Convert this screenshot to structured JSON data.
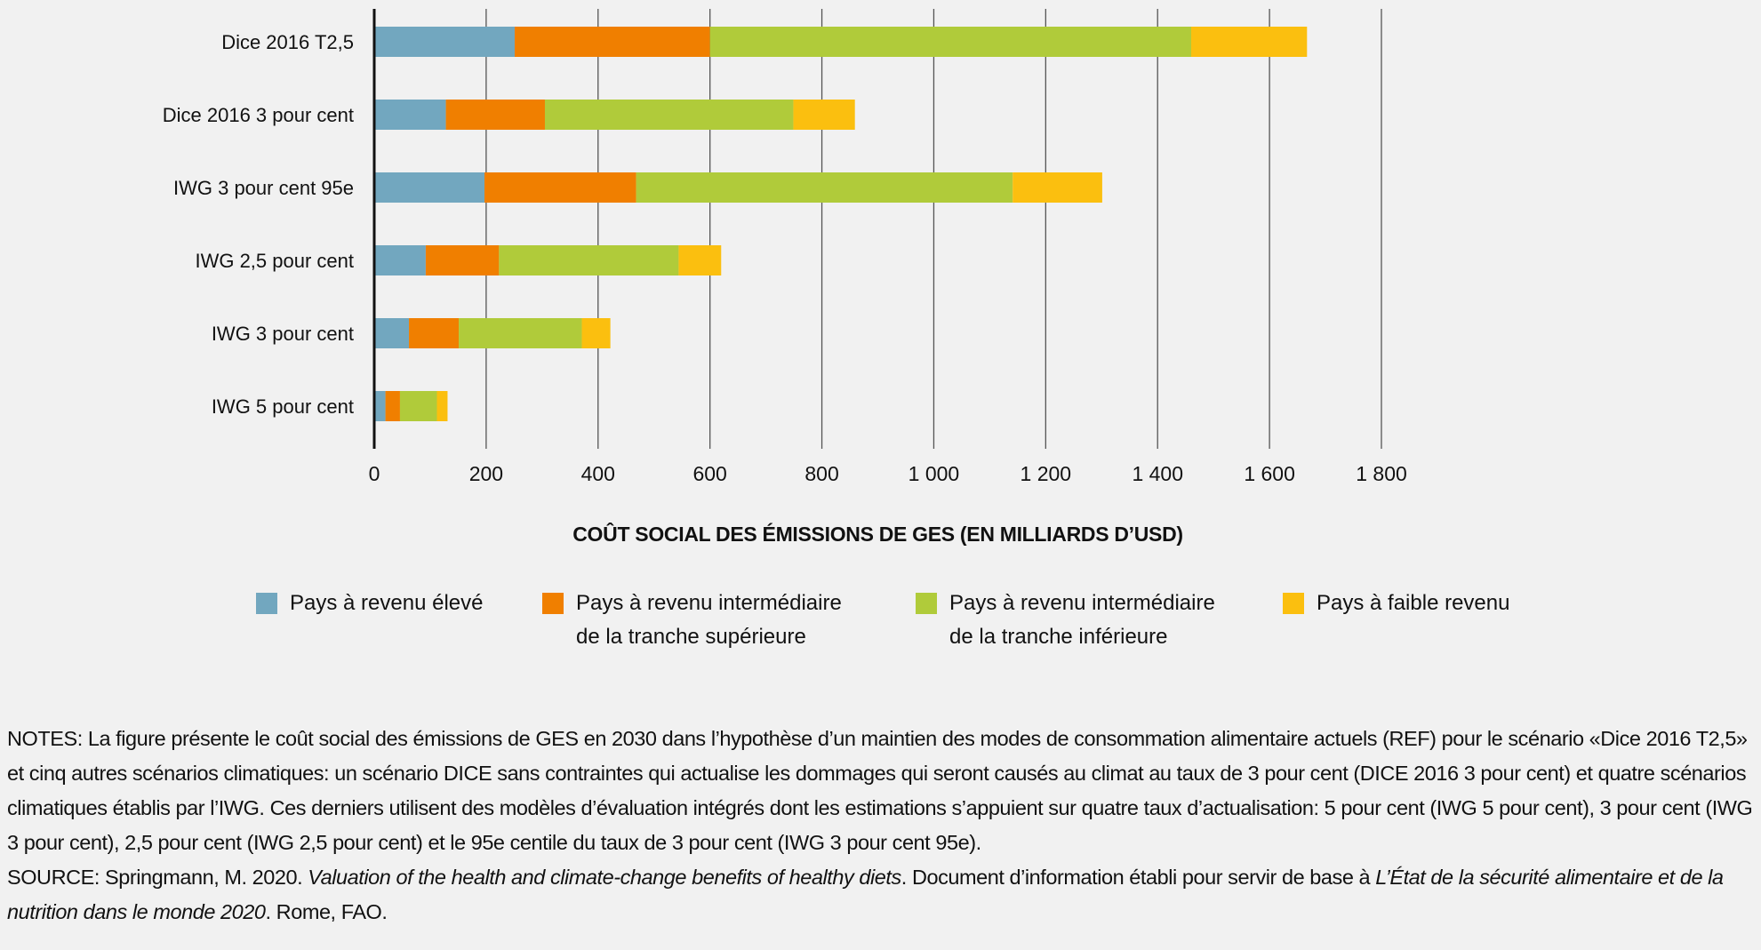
{
  "chart_data": {
    "type": "bar",
    "orientation": "horizontal",
    "stacked": true,
    "categories": [
      "Dice 2016 T2,5",
      "Dice 2016 3 pour cent",
      "IWG 3 pour cent 95e",
      "IWG 2,5 pour cent",
      "IWG 3 pour cent",
      "IWG 5 pour cent"
    ],
    "series": [
      {
        "name": "Pays à revenu élevé",
        "color": "#72a7bf",
        "values": [
          251,
          128,
          197,
          92,
          62,
          20
        ]
      },
      {
        "name": "Pays à revenu intermédiaire de la tranche supérieure",
        "color": "#f07f00",
        "values": [
          349,
          177,
          271,
          131,
          89,
          26
        ]
      },
      {
        "name": "Pays à revenu intermédiaire de la tranche inférieure",
        "color": "#b0cb3a",
        "values": [
          860,
          444,
          673,
          321,
          220,
          66
        ]
      },
      {
        "name": "Pays à faible revenu",
        "color": "#fbbf0f",
        "values": [
          207,
          110,
          160,
          76,
          51,
          19
        ]
      }
    ],
    "xlabel": "COÛT SOCIAL DES ÉMISSIONS DE GES (EN MILLIARDS D’USD)",
    "xlim": [
      0,
      1800
    ],
    "xticks": [
      "0",
      "200",
      "400",
      "600",
      "800",
      "1 000",
      "1 200",
      "1 400",
      "1 600",
      "1 800"
    ],
    "grid": true,
    "legend_position": "bottom"
  },
  "legend": [
    {
      "line1": "Pays à revenu élevé",
      "line2": ""
    },
    {
      "line1": "Pays à revenu intermédiaire",
      "line2": "de la tranche supérieure"
    },
    {
      "line1": "Pays à revenu intermédiaire",
      "line2": "de la tranche inférieure"
    },
    {
      "line1": "Pays à faible revenu",
      "line2": ""
    }
  ],
  "notes": {
    "notes_text": "NOTES: La figure présente le coût social des émissions de GES en 2030 dans l’hypothèse d’un maintien des modes de consommation alimentaire actuels (REF) pour le scénario «Dice 2016 T2,5» et cinq autres scénarios climatiques: un scénario DICE sans contraintes qui actualise les dommages qui seront causés au climat au taux de 3 pour cent (DICE 2016 3 pour cent) et quatre scénarios climatiques établis par l’IWG. Ces derniers utilisent des modèles d’évaluation intégrés dont les estimations s’appuient sur quatre taux d’actualisation: 5 pour cent (IWG 5 pour cent), 3 pour cent (IWG 3 pour cent), 2,5 pour cent (IWG 2,5 pour cent) et le 95e centile du taux de 3 pour cent (IWG 3 pour cent 95e).",
    "source_prefix": "SOURCE: Springmann, M. 2020. ",
    "source_title": "Valuation of the health and climate-change benefits of healthy diets",
    "source_mid": ". Document d’information établi pour servir de base à ",
    "source_report": "L’État de la sécurité alimentaire et de la nutrition dans le monde 2020",
    "source_end": ". Rome, FAO."
  }
}
